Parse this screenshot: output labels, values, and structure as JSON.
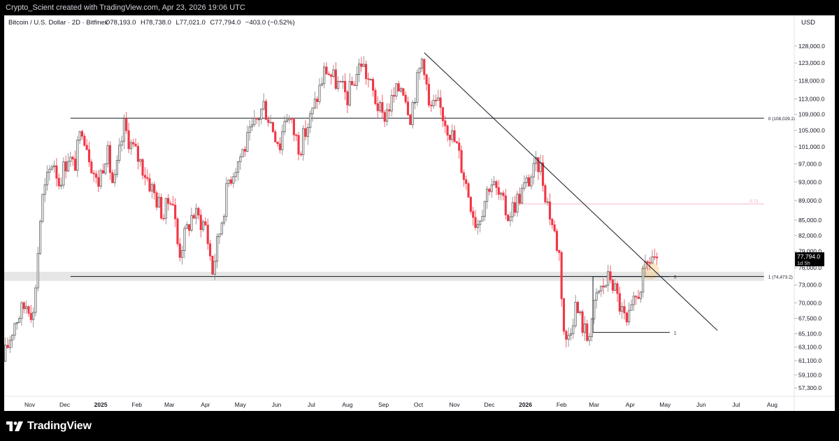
{
  "header": {
    "creator": "Crypto_Scient created with TradingView.com, Apr 23, 2026 19:06 UTC"
  },
  "branding": {
    "logo_text": "TradingView"
  },
  "chart_data": {
    "type": "candlestick",
    "symbol": "Bitcoin / U.S. Dollar · 2D · Bitfinex",
    "ohlc": {
      "open": "O78,193.0",
      "high": "H78,738.0",
      "low": "L77,021.0",
      "close": "C77,794.0",
      "change": "−403.0 (−0.52%)"
    },
    "currency": "USD",
    "x_ticks": [
      "Nov",
      "Dec",
      "2025",
      "Feb",
      "Mar",
      "Apr",
      "May",
      "Jun",
      "Jul",
      "Aug",
      "Sep",
      "Oct",
      "Nov",
      "Dec",
      "2026",
      "Feb",
      "Mar",
      "Apr",
      "May",
      "Jun",
      "Jul",
      "Aug"
    ],
    "x_tick_dates": [
      "2024-11-01",
      "2024-12-01",
      "2025-01-01",
      "2025-02-01",
      "2025-03-01",
      "2025-04-01",
      "2025-05-01",
      "2025-06-01",
      "2025-07-01",
      "2025-08-01",
      "2025-09-01",
      "2025-10-01",
      "2025-11-01",
      "2025-12-01",
      "2026-01-01",
      "2026-02-01",
      "2026-03-01",
      "2026-04-01",
      "2026-05-01",
      "2026-06-01",
      "2026-07-01",
      "2026-08-01"
    ],
    "y_ticks": [
      128000,
      123000,
      118000,
      113000,
      109000,
      105000,
      101000,
      97000,
      93000,
      89000,
      85000,
      82000,
      79000,
      76000,
      73000,
      70000,
      67500,
      65100,
      63100,
      61100,
      59100,
      57300
    ],
    "y_tick_labels": [
      "128,000.0",
      "123,000.0",
      "118,000.0",
      "113,000.0",
      "109,000.0",
      "105,000.0",
      "101,000.0",
      "97,000.0",
      "93,000.0",
      "89,000.0",
      "85,000.0",
      "82,000.0",
      "79,000.0",
      "76,000.0",
      "73,000.0",
      "70,000.0",
      "67,500.0",
      "65,100.0",
      "63,100.0",
      "61,100.0",
      "59,100.0",
      "57,300.0"
    ],
    "y_scale": "log",
    "ylim": [
      56200,
      130500
    ],
    "xlim": [
      "2024-10-10",
      "2026-08-20"
    ],
    "up_color": "#089981",
    "down_color": "#f23645",
    "price_tag": {
      "price": "77,794.0",
      "countdown": "1d 5h",
      "value": 77794
    },
    "price_path": [
      [
        "2024-10-10",
        61000
      ],
      [
        "2024-10-20",
        67000
      ],
      [
        "2024-10-31",
        70200
      ],
      [
        "2024-11-05",
        68000
      ],
      [
        "2024-11-12",
        88500
      ],
      [
        "2024-11-22",
        98500
      ],
      [
        "2024-11-27",
        93000
      ],
      [
        "2024-12-05",
        99000
      ],
      [
        "2024-12-10",
        96000
      ],
      [
        "2024-12-17",
        106200
      ],
      [
        "2024-12-30",
        92000
      ],
      [
        "2025-01-07",
        100500
      ],
      [
        "2025-01-13",
        91500
      ],
      [
        "2025-01-22",
        106000
      ],
      [
        "2025-01-28",
        101500
      ],
      [
        "2025-02-05",
        97500
      ],
      [
        "2025-02-25",
        86000
      ],
      [
        "2025-03-04",
        91000
      ],
      [
        "2025-03-10",
        78500
      ],
      [
        "2025-03-22",
        86500
      ],
      [
        "2025-04-02",
        84000
      ],
      [
        "2025-04-08",
        75500
      ],
      [
        "2025-04-22",
        93500
      ],
      [
        "2025-05-10",
        103500
      ],
      [
        "2025-05-22",
        111500
      ],
      [
        "2025-06-05",
        101500
      ],
      [
        "2025-06-10",
        110000
      ],
      [
        "2025-06-22",
        100800
      ],
      [
        "2025-07-03",
        109500
      ],
      [
        "2025-07-14",
        121500
      ],
      [
        "2025-08-02",
        113500
      ],
      [
        "2025-08-14",
        123500
      ],
      [
        "2025-09-01",
        108000
      ],
      [
        "2025-09-18",
        117500
      ],
      [
        "2025-09-25",
        109000
      ],
      [
        "2025-10-06",
        125800
      ],
      [
        "2025-10-11",
        110500
      ],
      [
        "2025-10-20",
        111000
      ],
      [
        "2025-11-04",
        101000
      ],
      [
        "2025-11-21",
        84000
      ],
      [
        "2025-12-03",
        93500
      ],
      [
        "2025-12-18",
        86000
      ],
      [
        "2026-01-14",
        97500
      ],
      [
        "2026-01-20",
        89500
      ],
      [
        "2026-01-31",
        78500
      ],
      [
        "2026-02-05",
        63000
      ],
      [
        "2026-02-14",
        69500
      ],
      [
        "2026-02-24",
        64500
      ],
      [
        "2026-03-05",
        71500
      ],
      [
        "2026-03-16",
        74500
      ],
      [
        "2026-03-30",
        66200
      ],
      [
        "2026-04-14",
        74800
      ],
      [
        "2026-04-20",
        78200
      ],
      [
        "2026-04-23",
        77794
      ]
    ],
    "trendline": {
      "from": [
        "2025-10-06",
        126000
      ],
      "to": [
        "2026-06-15",
        65600
      ]
    },
    "horizontal_levels": [
      {
        "from": "2024-12-06",
        "to": "2026-07-25",
        "value": 108029.2,
        "label": "0 (108,029.2)"
      },
      {
        "from": "2024-12-06",
        "to": "2026-07-25",
        "value": 74473.2,
        "label": "1 (74,473.2)"
      }
    ],
    "pink_level": {
      "from": "2025-12-28",
      "to": "2026-07-25",
      "value": 88300,
      "label": "0.71"
    },
    "support_zone": {
      "low": 73700,
      "high": 75300
    },
    "fib_small": [
      {
        "from": "2026-02-28",
        "to": "2026-05-05",
        "value": 74473.2,
        "label": "0"
      },
      {
        "from": "2026-02-28",
        "to": "2026-05-05",
        "value": 65300,
        "label": "1"
      }
    ],
    "highlight_point": {
      "date": "2026-04-18",
      "value": 75500
    }
  }
}
